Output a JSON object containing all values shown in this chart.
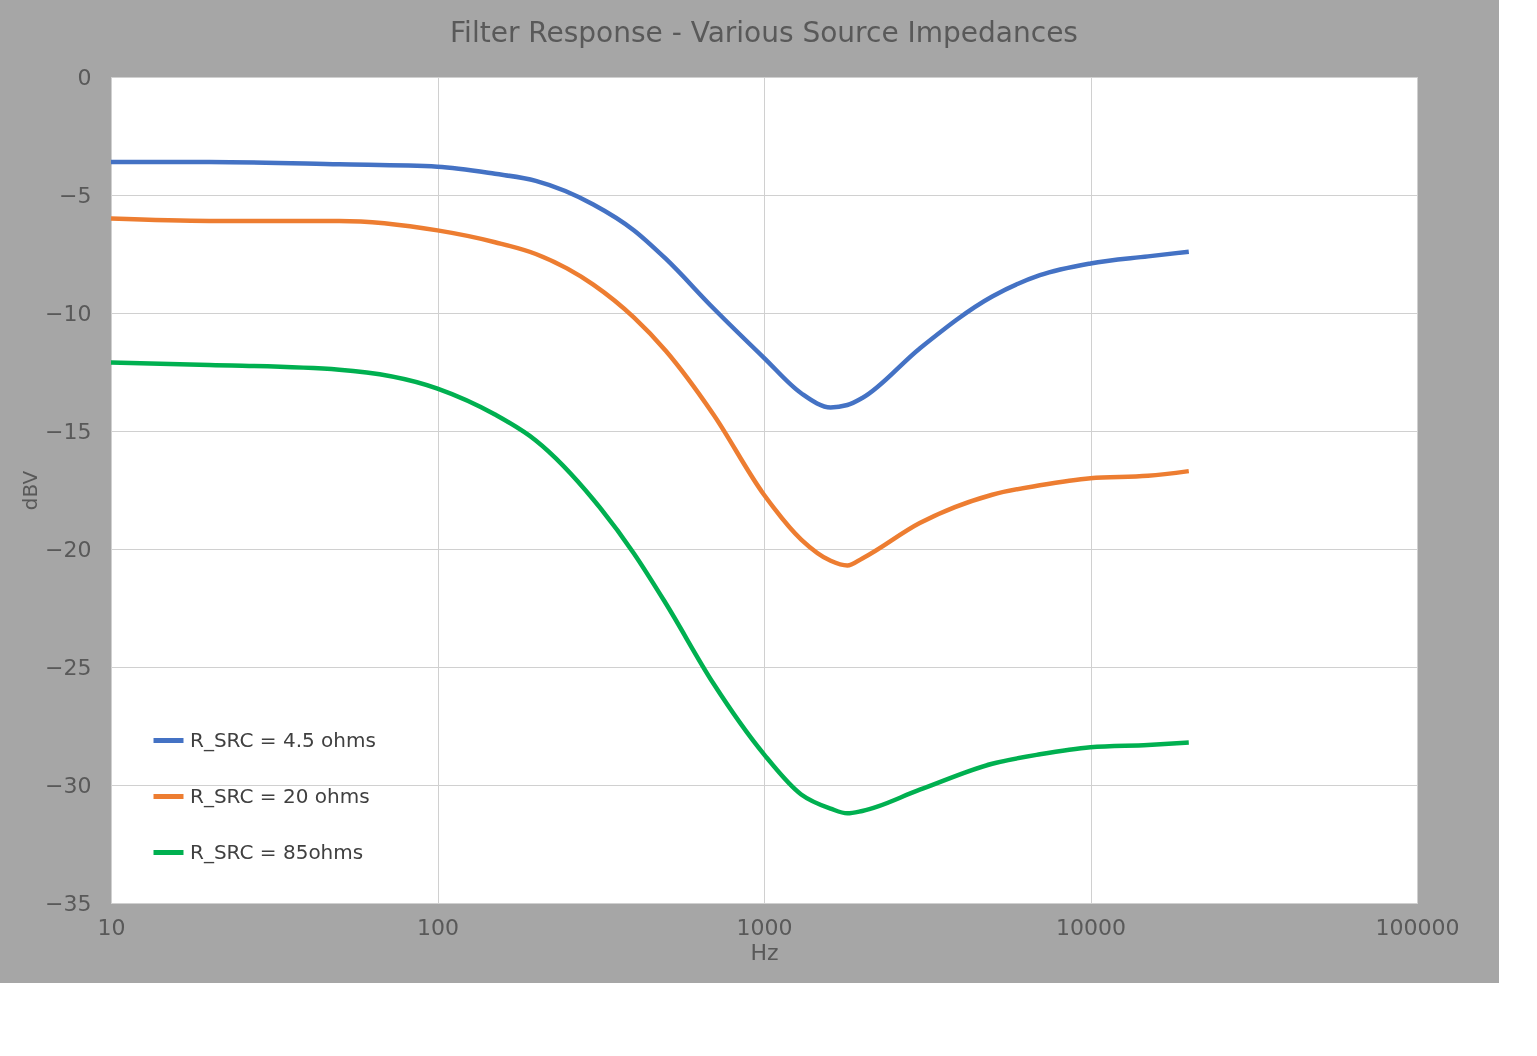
{
  "chart_data": {
    "type": "line",
    "title": "Filter Response - Various Source Impedances",
    "xlabel": "Hz",
    "ylabel": "dBV",
    "x": [
      10,
      20,
      50,
      100,
      150,
      200,
      300,
      400,
      500,
      700,
      1000,
      1300,
      1600,
      1800,
      2000,
      3000,
      5000,
      7000,
      10000,
      15000,
      20000
    ],
    "series": [
      {
        "name": "R_SRC = 4.5 ohms",
        "color": "#4472c4",
        "values": [
          -3.6,
          -3.6,
          -3.7,
          -3.8,
          -4.1,
          -4.4,
          -5.4,
          -6.5,
          -7.7,
          -9.8,
          -11.9,
          -13.4,
          -14.0,
          -13.9,
          -13.6,
          -11.5,
          -9.3,
          -8.4,
          -7.9,
          -7.6,
          -7.4
        ]
      },
      {
        "name": "R_SRC = 20 ohms",
        "color": "#ed7d31",
        "values": [
          -6.0,
          -6.1,
          -6.1,
          -6.5,
          -7.0,
          -7.5,
          -8.8,
          -10.2,
          -11.6,
          -14.3,
          -17.7,
          -19.6,
          -20.5,
          -20.7,
          -20.4,
          -18.9,
          -17.7,
          -17.3,
          -17.0,
          -16.9,
          -16.7
        ]
      },
      {
        "name": "R_SRC = 85ohms",
        "color": "#00b050",
        "values": [
          -12.1,
          -12.2,
          -12.4,
          -13.2,
          -14.3,
          -15.4,
          -17.9,
          -20.2,
          -22.3,
          -25.7,
          -28.7,
          -30.4,
          -31.0,
          -31.2,
          -31.1,
          -30.2,
          -29.1,
          -28.7,
          -28.4,
          -28.3,
          -28.2
        ]
      }
    ],
    "log": "x",
    "xlim": [
      10,
      100000
    ],
    "xticks": [
      10,
      100,
      1000,
      10000,
      100000
    ],
    "ylim": [
      -35,
      0
    ],
    "yticks": [
      -35,
      -30,
      -25,
      -20,
      -15,
      -10,
      -5,
      0
    ],
    "grid": true,
    "legend": "bottom left",
    "marker": "none",
    "line_style": "solid"
  }
}
